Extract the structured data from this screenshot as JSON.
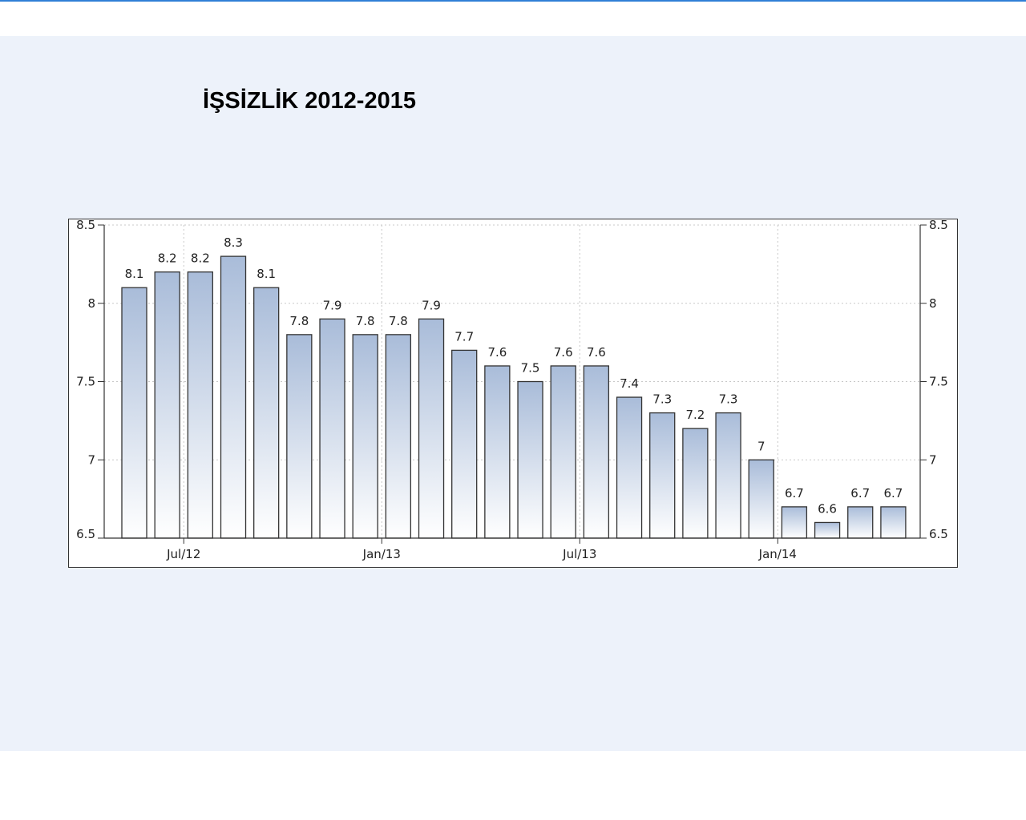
{
  "slide": {
    "title": "İŞSİZLİK 2012-2015"
  },
  "chart_data": {
    "type": "bar",
    "values": [
      8.1,
      8.2,
      8.2,
      8.3,
      8.1,
      7.8,
      7.9,
      7.8,
      7.8,
      7.9,
      7.7,
      7.6,
      7.5,
      7.6,
      7.6,
      7.4,
      7.3,
      7.2,
      7.3,
      7.0,
      6.7,
      6.6,
      6.7,
      6.7
    ],
    "value_labels": [
      "8.1",
      "8.2",
      "8.2",
      "8.3",
      "8.1",
      "7.8",
      "7.9",
      "7.8",
      "7.8",
      "7.9",
      "7.7",
      "7.6",
      "7.5",
      "7.6",
      "7.6",
      "7.4",
      "7.3",
      "7.2",
      "7.3",
      "7",
      "6.7",
      "6.6",
      "6.7",
      "6.7"
    ],
    "x_ticks": [
      "Jul/12",
      "Jan/13",
      "Jul/13",
      "Jan/14"
    ],
    "y_ticks": [
      "6.5",
      "7",
      "7.5",
      "8",
      "8.5"
    ],
    "ylim": [
      6.5,
      8.5
    ],
    "y_axis_sides": "left and right",
    "grid": true,
    "bar_color_top": "#a9bcd9",
    "bar_color_bottom": "#ffffff",
    "bar_border": "#333333",
    "grid_color": "#c8c8c8"
  }
}
